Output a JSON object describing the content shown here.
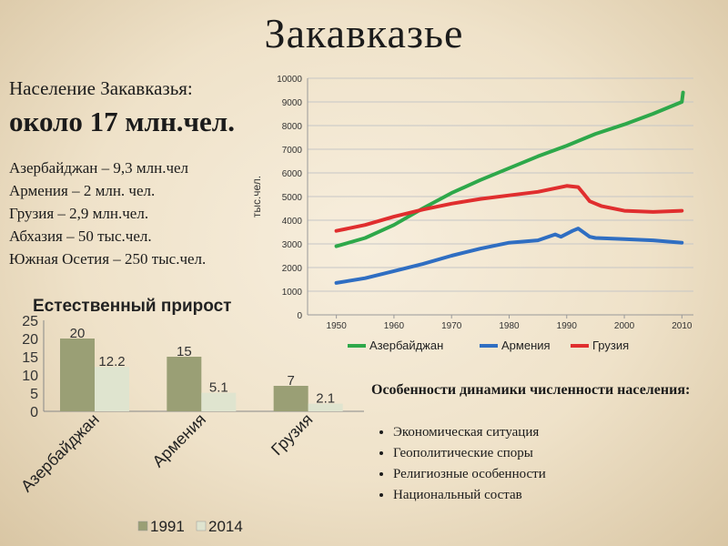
{
  "title": "Закавказье",
  "population": {
    "subtitle": "Население Закавказья:",
    "headline": "около 17 млн.чел.",
    "items": [
      "Азербайджан – 9,3 млн.чел",
      "Армения – 2 млн. чел.",
      "Грузия – 2,9 млн.чел.",
      "Абхазия – 50 тыс.чел.",
      "Южная Осетия – 250 тыс.чел."
    ]
  },
  "features": {
    "title": "Особенности динамики численности населения:",
    "items": [
      "Экономическая ситуация",
      "Геополитические споры",
      "Религиозные особенности",
      "Национальный состав"
    ]
  },
  "chart_data": [
    {
      "type": "line",
      "ylabel": "тыс.чел.",
      "xlim": [
        1945,
        2012
      ],
      "ylim": [
        0,
        10000
      ],
      "y_ticks": [
        0,
        1000,
        2000,
        3000,
        4000,
        5000,
        6000,
        7000,
        8000,
        9000,
        10000
      ],
      "x_ticks": [
        1950,
        1960,
        1970,
        1980,
        1990,
        2000,
        2010
      ],
      "grid": true,
      "legend": "bottom",
      "series": [
        {
          "name": "Азербайджан",
          "color": "#2ea84a",
          "x": [
            1950,
            1955,
            1960,
            1965,
            1970,
            1975,
            1980,
            1985,
            1990,
            1995,
            2000,
            2005,
            2010,
            2010.2
          ],
          "y": [
            2900,
            3250,
            3800,
            4500,
            5150,
            5700,
            6200,
            6700,
            7150,
            7650,
            8050,
            8500,
            9000,
            9400
          ]
        },
        {
          "name": "Армения",
          "color": "#2f6ec2",
          "x": [
            1950,
            1955,
            1960,
            1965,
            1970,
            1975,
            1980,
            1985,
            1988,
            1989,
            1991,
            1992,
            1994,
            1995,
            2000,
            2005,
            2010
          ],
          "y": [
            1350,
            1550,
            1850,
            2150,
            2500,
            2800,
            3050,
            3150,
            3400,
            3300,
            3550,
            3650,
            3300,
            3250,
            3200,
            3150,
            3050
          ]
        },
        {
          "name": "Грузия",
          "color": "#e02e2e",
          "x": [
            1950,
            1955,
            1960,
            1965,
            1970,
            1975,
            1980,
            1985,
            1990,
            1992,
            1993,
            1994,
            1995,
            1996,
            2000,
            2005,
            2010
          ],
          "y": [
            3550,
            3800,
            4150,
            4450,
            4700,
            4900,
            5050,
            5200,
            5450,
            5400,
            5100,
            4800,
            4700,
            4600,
            4400,
            4350,
            4400
          ]
        }
      ]
    },
    {
      "type": "bar",
      "title": "Естественный прирост",
      "categories": [
        "Азербайджан",
        "Армения",
        "Грузия"
      ],
      "ylim": [
        0,
        25
      ],
      "y_ticks": [
        0,
        5,
        10,
        15,
        20,
        25
      ],
      "legend": "bottom",
      "series": [
        {
          "name": "1991",
          "color": "#9a9f75",
          "values": [
            20,
            15,
            7
          ]
        },
        {
          "name": "2014",
          "color": "#dfe4cf",
          "values": [
            12.2,
            5.1,
            2.1
          ]
        }
      ]
    }
  ]
}
